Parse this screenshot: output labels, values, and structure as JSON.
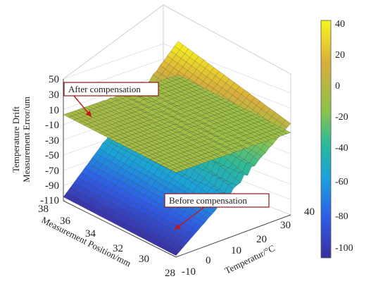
{
  "chart_data": {
    "type": "surface",
    "xlabel": "Temperatur/°C",
    "ylabel": "Measurement Position/mm",
    "zlabel": [
      "Temperature Drift",
      "Measurement Error/um"
    ],
    "xlim": [
      -10,
      40
    ],
    "ylim": [
      28,
      38
    ],
    "zlim": [
      -110,
      50
    ],
    "x_ticks": [
      "-10",
      "0",
      "10",
      "20",
      "30",
      "40"
    ],
    "y_ticks": [
      "28",
      "30",
      "32",
      "34",
      "36",
      "38"
    ],
    "z_ticks": [
      "50",
      "30",
      "10",
      "-10",
      "-30",
      "-50",
      "-70",
      "-90",
      "-110"
    ],
    "colorbar": {
      "ticks": [
        "40",
        "20",
        "0",
        "-20",
        "-40",
        "-60",
        "-80",
        "-100"
      ],
      "range": [
        -108,
        44
      ],
      "colors": [
        "#3a2fa0",
        "#2f5de6",
        "#1aa2da",
        "#2cb99a",
        "#8cc34a",
        "#d8ae3c",
        "#f8f51e"
      ]
    },
    "series": [
      {
        "name": "Before compensation",
        "description_corners": {
          "T-10_P38": -105,
          "T-10_P28": -108,
          "T40_P38": 44,
          "T40_P28": 10
        }
      },
      {
        "name": "After compensation",
        "description_corners": {
          "T-10_P38": 3,
          "T-10_P28": 1,
          "T40_P38": 0,
          "T40_P28": -2
        }
      }
    ],
    "annotations": [
      {
        "text": "After compensation"
      },
      {
        "text": "Before compensation"
      }
    ],
    "grid": true
  }
}
